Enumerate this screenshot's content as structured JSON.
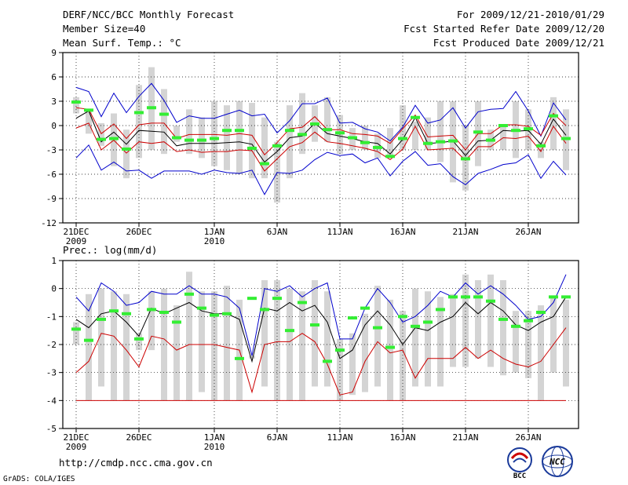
{
  "header": {
    "title": "DERF/NCC/BCC Monthly Forecast",
    "member_size": "Member Size=40",
    "variable": "Mean Surf. Temp.: °C",
    "period": "For 2009/12/21-2010/01/29",
    "fcst_started": "Fcst Started Refer Date 2009/12/20",
    "fcst_produced": "Fcst Produced Date 2009/12/21"
  },
  "footer": {
    "url": "http://cmdp.ncc.cma.gov.cn",
    "grads": "GrADS: COLA/IGES",
    "logo_bcc": "BCC",
    "logo_ncc": "NCC"
  },
  "colors": {
    "box": "#d4d4d4",
    "upper": "#0000cc",
    "lower": "#cc0000",
    "mean": "#000000",
    "green": "#33ee33",
    "grid": "#000000",
    "baseline": "#cc0000"
  },
  "chart_data": [
    {
      "type": "box-ensemble",
      "title": "Mean Surf. Temp.: °C",
      "ylim": [
        -12,
        9
      ],
      "yticks": [
        "9",
        "6",
        "3",
        "0",
        "-3",
        "-6",
        "-9",
        "-12"
      ],
      "xlabels": [
        {
          "day": 1,
          "label": "21DEC",
          "sub": "2009"
        },
        {
          "day": 6,
          "label": "26DEC",
          "sub": ""
        },
        {
          "day": 12,
          "label": "1JAN",
          "sub": "2010"
        },
        {
          "day": 17,
          "label": "6JAN",
          "sub": ""
        },
        {
          "day": 22,
          "label": "11JAN",
          "sub": ""
        },
        {
          "day": 27,
          "label": "16JAN",
          "sub": ""
        },
        {
          "day": 32,
          "label": "21JAN",
          "sub": ""
        },
        {
          "day": 37,
          "label": "26JAN",
          "sub": ""
        }
      ],
      "days": [
        1,
        2,
        3,
        4,
        5,
        6,
        7,
        8,
        9,
        10,
        11,
        12,
        13,
        14,
        15,
        16,
        17,
        18,
        19,
        20,
        21,
        22,
        23,
        24,
        25,
        26,
        27,
        28,
        29,
        30,
        31,
        32,
        33,
        34,
        35,
        36,
        37,
        38,
        39,
        40
      ],
      "box_top": [
        3.5,
        2,
        0.3,
        1.5,
        -0.5,
        5,
        7.2,
        4.5,
        0,
        2,
        1,
        3,
        2.5,
        3,
        2.8,
        1,
        -2,
        2.5,
        4,
        2.5,
        3.5,
        1.3,
        -0.3,
        0,
        -1,
        -0.3,
        2.5,
        0.5,
        1,
        3,
        3,
        0,
        3,
        -0.5,
        0,
        3,
        2,
        -2,
        3.5,
        2
      ],
      "box_bottom": [
        1.5,
        -1,
        -2.5,
        -5,
        -6.5,
        -4,
        -3,
        -3.5,
        -2,
        -3.5,
        -4,
        -5,
        -5.5,
        -6,
        -6.5,
        -6.5,
        -9.5,
        -6.5,
        -3.5,
        -2,
        -2,
        -3.5,
        -3,
        -3,
        -4,
        -4,
        -3,
        -3,
        -3,
        -4.5,
        -7,
        -8,
        -5,
        -3,
        -3,
        -4,
        -3,
        -4,
        -3,
        -5.5
      ],
      "upper": [
        4.7,
        4.2,
        1.1,
        4.0,
        1.6,
        3.6,
        5.2,
        3.1,
        0.4,
        1.2,
        0.9,
        0.9,
        1.4,
        1.9,
        1.2,
        1.4,
        -0.9,
        0.6,
        2.7,
        2.7,
        3.4,
        0.3,
        0.4,
        -0.4,
        -0.8,
        -1.9,
        -0.2,
        2.5,
        0.3,
        0.7,
        2.2,
        -0.3,
        1.7,
        2.0,
        2.1,
        4.2,
        1.8,
        -1.3,
        2.8,
        0.7
      ],
      "mean_p": [
        2.2,
        2.0,
        -1.0,
        0.2,
        -1.6,
        0.1,
        0.3,
        0.3,
        -1.6,
        -1.1,
        -1.1,
        -1.1,
        -1.2,
        -1.0,
        -1.2,
        -3.6,
        -2.1,
        -0.4,
        -0.2,
        1.1,
        -0.5,
        -0.5,
        -1.0,
        -1.1,
        -1.3,
        -2.2,
        -0.4,
        1.3,
        -1.4,
        -1.3,
        -1.2,
        -3.0,
        -1.0,
        -1.0,
        0.1,
        0.1,
        -0.1,
        -1.2,
        1.5,
        0.0
      ],
      "mean": [
        0.9,
        1.8,
        -2.0,
        -0.8,
        -2.3,
        -0.6,
        -0.7,
        -0.8,
        -2.5,
        -2.2,
        -2.2,
        -2.2,
        -2.1,
        -2.0,
        -2.3,
        -4.5,
        -3.2,
        -1.5,
        -1.3,
        0.3,
        -1.0,
        -1.3,
        -1.6,
        -2.0,
        -2.2,
        -3.5,
        -1.7,
        1.0,
        -2.2,
        -2.1,
        -1.9,
        -3.7,
        -1.9,
        -1.8,
        -0.6,
        -0.7,
        -0.6,
        -2.3,
        0.8,
        -1.2
      ],
      "mean_m": [
        -0.3,
        0.3,
        -3.0,
        -1.8,
        -3.4,
        -2.0,
        -2.2,
        -2.0,
        -3.2,
        -3.0,
        -3.3,
        -3.2,
        -3.2,
        -3.0,
        -3.1,
        -5.6,
        -4.1,
        -2.6,
        -2.1,
        -0.8,
        -2.0,
        -2.2,
        -2.5,
        -2.8,
        -3.2,
        -4.2,
        -2.9,
        -0.1,
        -3.0,
        -2.9,
        -2.8,
        -4.3,
        -2.6,
        -2.6,
        -1.5,
        -1.6,
        -1.3,
        -3.2,
        -0.1,
        -2.2
      ],
      "lower": [
        -4.0,
        -2.4,
        -5.5,
        -4.5,
        -5.6,
        -5.5,
        -6.5,
        -5.6,
        -5.6,
        -5.6,
        -6.0,
        -5.5,
        -5.8,
        -5.9,
        -5.5,
        -8.5,
        -5.8,
        -5.9,
        -5.5,
        -4.2,
        -3.3,
        -3.7,
        -3.5,
        -4.6,
        -4.0,
        -6.2,
        -4.4,
        -3.2,
        -4.9,
        -4.7,
        -6.3,
        -7.3,
        -5.9,
        -5.4,
        -4.8,
        -4.6,
        -3.6,
        -6.5,
        -4.4,
        -6.1
      ],
      "green": [
        2.9,
        1.9,
        -1.7,
        -1.6,
        -2.9,
        1.6,
        2.2,
        1.4,
        -1.5,
        -1.8,
        -1.8,
        -1.6,
        -0.6,
        -0.6,
        -2.8,
        -4.7,
        -2.5,
        -0.6,
        -1.1,
        0.2,
        -0.5,
        -0.9,
        -1.5,
        -2.1,
        -2.7,
        -3.8,
        -1.6,
        1.0,
        -2.2,
        -2.0,
        -1.9,
        -4.1,
        -0.8,
        -1.8,
        0.0,
        -0.6,
        -0.4,
        -2.5,
        1.2,
        -1.6
      ]
    },
    {
      "type": "box-ensemble",
      "title": "Prec.: log(mm/d)",
      "ylim": [
        -5,
        1
      ],
      "yticks": [
        "1",
        "0",
        "-1",
        "-2",
        "-3",
        "-4",
        "-5"
      ],
      "xlabels": [
        {
          "day": 1,
          "label": "21DEC",
          "sub": "2009"
        },
        {
          "day": 6,
          "label": "26DEC",
          "sub": ""
        },
        {
          "day": 12,
          "label": "1JAN",
          "sub": "2010"
        },
        {
          "day": 17,
          "label": "6JAN",
          "sub": ""
        },
        {
          "day": 22,
          "label": "11JAN",
          "sub": ""
        },
        {
          "day": 27,
          "label": "16JAN",
          "sub": ""
        },
        {
          "day": 32,
          "label": "21JAN",
          "sub": ""
        },
        {
          "day": 37,
          "label": "26JAN",
          "sub": ""
        }
      ],
      "days": [
        1,
        2,
        3,
        4,
        5,
        6,
        7,
        8,
        9,
        10,
        11,
        12,
        13,
        14,
        15,
        16,
        17,
        18,
        19,
        20,
        21,
        22,
        23,
        24,
        25,
        26,
        27,
        28,
        29,
        30,
        31,
        32,
        33,
        34,
        35,
        36,
        37,
        38,
        39,
        40
      ],
      "box_top": [
        -1.2,
        -0.2,
        0.0,
        -0.1,
        -0.2,
        -1.6,
        -0.1,
        0.0,
        -0.6,
        0.6,
        -0.1,
        -0.1,
        0.1,
        -0.4,
        -2.4,
        0.3,
        0.3,
        0.0,
        -0.1,
        0.3,
        -0.1,
        -1.8,
        -1.6,
        -0.9,
        0.1,
        -0.4,
        -0.8,
        0.0,
        -0.1,
        -0.3,
        -0.2,
        0.5,
        0.3,
        0.5,
        0.3,
        -0.8,
        -0.8,
        -0.6,
        -0.3,
        -0.4
      ],
      "box_bottom": [
        -2.0,
        -4.0,
        -3.5,
        -4.0,
        -4.0,
        -2.2,
        -2.2,
        -4.0,
        -4.0,
        -4.0,
        -3.7,
        -4.0,
        -4.0,
        -4.0,
        -2.5,
        -3.5,
        -4.0,
        -4.0,
        -4.0,
        -3.5,
        -3.5,
        -4.0,
        -3.8,
        -3.7,
        -3.5,
        -4.0,
        -4.0,
        -3.5,
        -3.5,
        -3.5,
        -2.8,
        -2.8,
        -2.5,
        -2.8,
        -3.1,
        -3.0,
        -3.2,
        -4.0,
        -3.0,
        -3.5
      ],
      "upper": [
        -0.3,
        -0.8,
        0.2,
        -0.1,
        -0.6,
        -0.5,
        -0.1,
        -0.2,
        -0.2,
        0.1,
        -0.2,
        -0.2,
        -0.3,
        -0.7,
        -2.4,
        0.0,
        -0.1,
        0.1,
        -0.3,
        0.0,
        0.2,
        -1.8,
        -1.8,
        -0.7,
        0.0,
        -0.5,
        -1.2,
        -1.0,
        -0.6,
        -0.1,
        -0.3,
        0.2,
        -0.2,
        0.1,
        -0.2,
        -0.6,
        -1.1,
        -1.0,
        -0.5,
        0.5
      ],
      "mean": [
        -1.1,
        -1.4,
        -0.9,
        -0.8,
        -1.2,
        -1.7,
        -0.7,
        -0.9,
        -0.7,
        -0.5,
        -0.8,
        -0.9,
        -0.9,
        -1.1,
        -2.6,
        -0.7,
        -0.8,
        -0.5,
        -0.8,
        -0.6,
        -1.2,
        -2.5,
        -2.2,
        -1.3,
        -0.8,
        -1.3,
        -2.0,
        -1.4,
        -1.5,
        -1.2,
        -1.0,
        -0.5,
        -0.9,
        -0.5,
        -0.8,
        -1.3,
        -1.5,
        -1.2,
        -1.0,
        -0.3
      ],
      "lower": [
        -3.0,
        -2.6,
        -1.6,
        -1.7,
        -2.2,
        -2.8,
        -1.7,
        -1.8,
        -2.2,
        -2.0,
        -2.0,
        -2.0,
        -2.1,
        -2.2,
        -3.7,
        -2.0,
        -1.9,
        -1.9,
        -1.6,
        -1.9,
        -2.7,
        -3.8,
        -3.7,
        -2.6,
        -1.9,
        -2.3,
        -2.2,
        -3.2,
        -2.5,
        -2.5,
        -2.5,
        -2.1,
        -2.5,
        -2.2,
        -2.5,
        -2.7,
        -2.8,
        -2.6,
        -2.0,
        -1.4
      ],
      "baseline": -4,
      "green": [
        -1.45,
        -1.85,
        -1.1,
        -0.8,
        -0.9,
        -1.8,
        -0.75,
        -0.85,
        -1.2,
        -0.2,
        -0.7,
        -0.95,
        -0.9,
        -2.5,
        -0.35,
        -0.75,
        -0.35,
        -1.5,
        -0.5,
        -1.3,
        -2.6,
        -2.2,
        -1.05,
        -0.7,
        -1.4,
        -2.1,
        -1.0,
        -1.35,
        -1.2,
        -0.75,
        -0.3,
        -0.3,
        -0.3,
        -0.45,
        -1.1,
        -1.35,
        -1.15,
        -0.85,
        -0.3,
        -0.3
      ]
    }
  ]
}
